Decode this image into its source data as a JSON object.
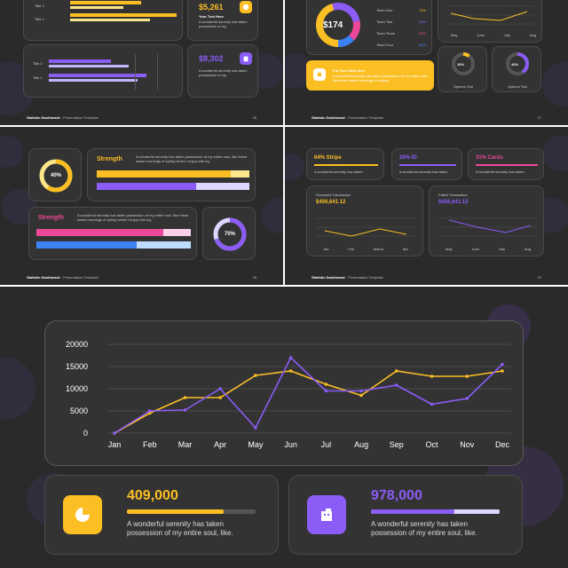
{
  "slide1": {
    "bar_labels": [
      "Title 2",
      "Title 1"
    ],
    "bar_labels_b": [
      "Title 2",
      "Title 1"
    ],
    "stat1_value": "$5,261",
    "stat1_title": "Your Text Here",
    "stat1_text": "A wonderful serenity has taken possession of my.",
    "stat2_value": "$8,302",
    "stat2_text": "A wonderful serenity has taken possession of my.",
    "footer_title": "Statistic Dashboard",
    "footer_sub": " - Presentation Template",
    "page": "26"
  },
  "slide2": {
    "donut_value": "$174",
    "teams": [
      {
        "name": "Team One",
        "pct": "13%",
        "color": "#fbbf24"
      },
      {
        "name": "Team Two",
        "pct": "45%",
        "color": "#8b5cf6"
      },
      {
        "name": "Team Three",
        "pct": "35%",
        "color": "#ec4899"
      },
      {
        "name": "Team Four",
        "pct": "58%",
        "color": "#3b82f6"
      }
    ],
    "months": [
      "May",
      "June",
      "July",
      "Aug"
    ],
    "notice_title": "Put Your Data Here",
    "notice_text": "A wonderful serenity has taken possession of my entire soul, like these sweet mornings of spring.",
    "option1_pct": "10%",
    "option1_label": "Options One",
    "option2_pct": "40%",
    "option2_label": "Options Two",
    "footer_title": "Statistic Dashboard",
    "footer_sub": " - Presentation Template",
    "page": "27"
  },
  "slide3": {
    "donut_pct": "40%",
    "strength1_title": "Strength",
    "strength1_text": "A wonderful serenity has taken possession of my entire soul, like these sweet mornings of spring which I enjoy with my.",
    "strength2_title": "Strength",
    "strength2_text": "A wonderful serenity has taken possession of my entire soul, like these sweet mornings of spring which I enjoy with my.",
    "donut2_pct": "70%",
    "footer_title": "Statistic Dashboard",
    "footer_sub": " - Presentation Template",
    "page": "28"
  },
  "slide4": {
    "kpis": [
      {
        "title": "64% Stripe",
        "text": "A wonderful serenity has taken.",
        "color": "#fbbf24"
      },
      {
        "title": "26% ID",
        "text": "A wonderful serenity has taken.",
        "color": "#8b5cf6"
      },
      {
        "title": "31% Cards",
        "text": "A wonderful serenity has taken.",
        "color": "#ec4899"
      }
    ],
    "panel1_label": "Succesful Transaction",
    "panel1_value": "$456,641.12",
    "panel1_months": [
      "Jan",
      "Feb",
      "March",
      "Apr"
    ],
    "panel2_label": "Failed Transaction",
    "panel2_value": "$456,641.12",
    "panel2_months": [
      "May",
      "June",
      "July",
      "Aug"
    ],
    "footer_title": "Statistic Dashboard",
    "footer_sub": " - Presentation Template",
    "page": "29"
  },
  "slide5": {
    "chart_data": {
      "type": "line",
      "categories": [
        "Jan",
        "Feb",
        "Mar",
        "Apr",
        "May",
        "Jun",
        "Jul",
        "Aug",
        "Sep",
        "Oct",
        "Nov",
        "Dec"
      ],
      "ylim": [
        0,
        20000
      ],
      "yticks": [
        "20000",
        "15000",
        "10000",
        "5000",
        "0"
      ],
      "series": [
        {
          "color": "#fbbf24",
          "values": [
            0,
            4500,
            8000,
            8000,
            13000,
            14000,
            11000,
            8500,
            14000,
            12800,
            12800,
            14000
          ]
        },
        {
          "color": "#8b5cf6",
          "values": [
            0,
            5000,
            5200,
            10000,
            1200,
            17000,
            9500,
            9500,
            10800,
            6500,
            7800,
            15500
          ]
        }
      ]
    },
    "stat1_value": "409,000",
    "stat1_text": "A wonderful serenity has taken possession of my entire soul, like.",
    "stat1_progress": 0.75,
    "stat2_value": "978,000",
    "stat2_text": "A wonderful serenity has taken possession of my entire soul, like.",
    "stat2_progress": 0.65
  },
  "colors": {
    "yellow": "#fbbf24",
    "purple": "#8b5cf6",
    "pink": "#ec4899",
    "blue": "#3b82f6",
    "bg": "#2a2a2b",
    "card": "#333334"
  }
}
